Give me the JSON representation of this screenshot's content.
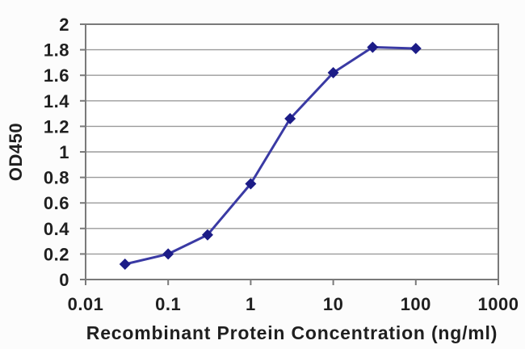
{
  "page": {
    "background": "#fcfcfc"
  },
  "chart_data": {
    "type": "line",
    "title": "",
    "xlabel": "Recombinant Protein Concentration (ng/ml)",
    "ylabel": "OD450",
    "x_scale": "log",
    "y_scale": "linear",
    "xlim": [
      0.01,
      1000
    ],
    "ylim": [
      0,
      2
    ],
    "x_tick_values": [
      0.01,
      0.1,
      1,
      10,
      100,
      1000
    ],
    "x_tick_labels": [
      "0.01",
      "0.1",
      "1",
      "10",
      "100",
      "1000"
    ],
    "y_tick_values": [
      0,
      0.2,
      0.4,
      0.6,
      0.8,
      1,
      1.2,
      1.4,
      1.6,
      1.8,
      2
    ],
    "y_tick_labels": [
      "0",
      "0.2",
      "0.4",
      "0.6",
      "0.8",
      "1",
      "1.2",
      "1.4",
      "1.6",
      "1.8",
      "2"
    ],
    "grid": "horizontal-only",
    "legend_position": "none",
    "series": [
      {
        "x": [
          0.03,
          0.1,
          0.3,
          1,
          3,
          10,
          30,
          100
        ],
        "y": [
          0.12,
          0.2,
          0.35,
          0.75,
          1.26,
          1.62,
          1.82,
          1.81
        ],
        "marker": "diamond",
        "line_color": "#3a3aa4",
        "marker_color": "#1c1c87"
      }
    ],
    "colors": {
      "gridline": "#9b9b9b",
      "axis_frame": "#7a7a7a",
      "tick": "#7a7a7a",
      "label_text": "#1f1f1f",
      "plot_fill": "#ffffff"
    }
  }
}
